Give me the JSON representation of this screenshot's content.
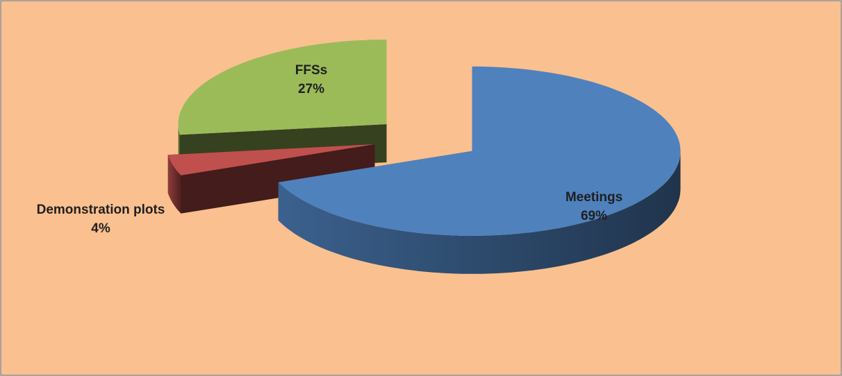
{
  "chart_data": {
    "type": "pie",
    "categories": [
      "Meetings",
      "Demonstration plots",
      "FFSs"
    ],
    "values": [
      69,
      4,
      27
    ],
    "value_labels": [
      "69%",
      "4%",
      "27%"
    ],
    "colors": [
      "#4f81bd",
      "#c0504d",
      "#9bbb59"
    ]
  }
}
